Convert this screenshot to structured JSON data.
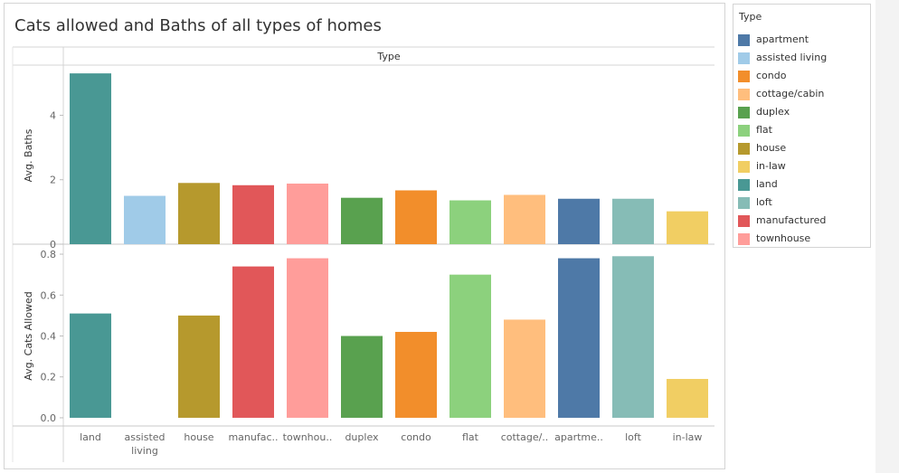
{
  "title": "Cats allowed and Baths of all types of homes",
  "legend": {
    "title": "Type",
    "items": [
      {
        "label": "apartment",
        "color": "#4e79a7"
      },
      {
        "label": "assisted living",
        "color": "#a0cbe8"
      },
      {
        "label": "condo",
        "color": "#f28e2b"
      },
      {
        "label": "cottage/cabin",
        "color": "#ffbe7d"
      },
      {
        "label": "duplex",
        "color": "#59a14f"
      },
      {
        "label": "flat",
        "color": "#8cd17d"
      },
      {
        "label": "house",
        "color": "#b6992d"
      },
      {
        "label": "in-law",
        "color": "#f1ce63"
      },
      {
        "label": "land",
        "color": "#499894"
      },
      {
        "label": "loft",
        "color": "#86bcb6"
      },
      {
        "label": "manufactured",
        "color": "#e15759"
      },
      {
        "label": "townhouse",
        "color": "#ff9d9a"
      }
    ]
  },
  "chart_data": {
    "type": "bar",
    "column_header": "Type",
    "categories": [
      "land",
      "assisted living",
      "house",
      "manufactured",
      "townhouse",
      "duplex",
      "condo",
      "flat",
      "cottage/cabin",
      "apartment",
      "loft",
      "in-law"
    ],
    "category_labels": [
      "land",
      "assisted\nliving",
      "house",
      "manufac..",
      "townhou..",
      "duplex",
      "condo",
      "flat",
      "cottage/..",
      "apartme..",
      "loft",
      "in-law"
    ],
    "colors": [
      "#499894",
      "#a0cbe8",
      "#b6992d",
      "#e15759",
      "#ff9d9a",
      "#59a14f",
      "#f28e2b",
      "#8cd17d",
      "#ffbe7d",
      "#4e79a7",
      "#86bcb6",
      "#f1ce63"
    ],
    "panels": [
      {
        "ylabel": "Avg. Baths",
        "ylim": [
          0,
          5.5
        ],
        "ticks": [
          0,
          2,
          4
        ],
        "tick_labels": [
          "0",
          "2",
          "4"
        ],
        "values": [
          5.3,
          1.5,
          1.9,
          1.83,
          1.88,
          1.44,
          1.67,
          1.36,
          1.53,
          1.41,
          1.41,
          1.02
        ]
      },
      {
        "ylabel": "Avg. Cats Allowed",
        "ylim": [
          -0.04,
          0.84
        ],
        "ticks": [
          0.0,
          0.2,
          0.4,
          0.6,
          0.8
        ],
        "tick_labels": [
          "0.0",
          "0.2",
          "0.4",
          "0.6",
          "0.8"
        ],
        "values": [
          0.51,
          0.0,
          0.5,
          0.74,
          0.78,
          0.4,
          0.42,
          0.7,
          0.48,
          0.78,
          0.79,
          0.19
        ]
      }
    ],
    "grid": false,
    "legend_position": "right"
  }
}
